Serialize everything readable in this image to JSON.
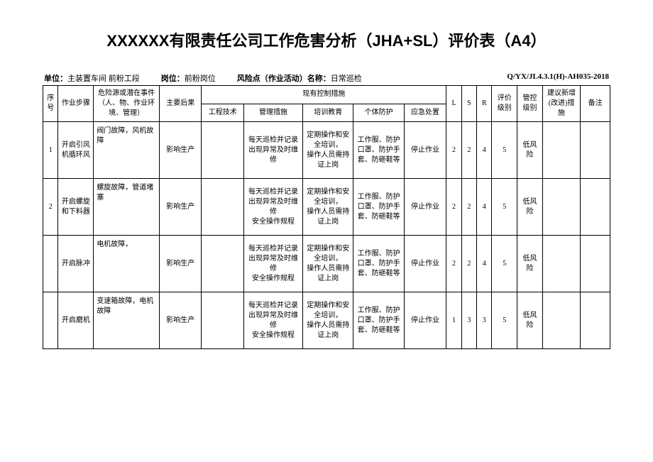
{
  "title": "XXXXXX有限责任公司工作危害分析（JHA+SL）评价表（A4）",
  "meta": {
    "unit_label": "单位：",
    "unit_val": "主装置车间 前粉工段",
    "post_label": "岗位：",
    "post_val": "前粉岗位",
    "risk_label": "风险点（作业活动）名称：",
    "risk_val": "日常巡检",
    "code": "Q/YX/JL4.3.1(H)-AH035-2018"
  },
  "headers": {
    "seq": "序号",
    "step": "作业步骤",
    "hazard": "危险源或潜在事件（人、物、作业环境、管理）",
    "conseq": "主要后果",
    "control": "现有控制措施",
    "eng": "工程技术",
    "mgmt": "管理措施",
    "train": "培训教育",
    "ppe": "个体防护",
    "emerg": "应急处置",
    "L": "L",
    "S": "S",
    "R": "R",
    "grade": "评价级别",
    "ctrl": "管控级别",
    "sugg": "建议新增(改进)措施",
    "remark": "备注"
  },
  "rows": [
    {
      "seq": "1",
      "step": "开启引风机循环风",
      "hazard": "阀门故障，风机故障",
      "conseq": "影响生产",
      "eng": "",
      "mgmt": "每天巡检并记录\n出现异常及时维修",
      "train": "定期操作和安全培训，\n操作人员需持证上岗",
      "ppe": "工作服、防护口罩、防护手套、防砸鞋等",
      "emerg": "停止作业",
      "L": "2",
      "S": "2",
      "R": "4",
      "grade": "5",
      "ctrl": "低风险",
      "sugg": "",
      "remark": ""
    },
    {
      "seq": "2",
      "step": "开启螺旋和下料器",
      "hazard": "螺旋故障，管道堵塞",
      "conseq": "影响生产",
      "eng": "",
      "mgmt": "每天巡检并记录\n出现异常及时维修\n安全操作规程",
      "train": "定期操作和安全培训，\n操作人员需持证上岗",
      "ppe": "工作服、防护口罩、防护手套、防砸鞋等",
      "emerg": "停止作业",
      "L": "2",
      "S": "2",
      "R": "4",
      "grade": "5",
      "ctrl": "低风险",
      "sugg": "",
      "remark": ""
    },
    {
      "seq": "",
      "step": "开启脉冲",
      "hazard": "电机故障，",
      "conseq": "影响生产",
      "eng": "",
      "mgmt": "每天巡检并记录\n出现异常及时维修\n安全操作规程",
      "train": "定期操作和安全培训，\n操作人员需持证上岗",
      "ppe": "工作服、防护口罩、防护手套、防砸鞋等",
      "emerg": "停止作业",
      "L": "2",
      "S": "2",
      "R": "4",
      "grade": "5",
      "ctrl": "低风险",
      "sugg": "",
      "remark": ""
    },
    {
      "seq": "",
      "step": "开启磨机",
      "hazard": "变速箱故障，电机故障",
      "conseq": "影响生产",
      "eng": "",
      "mgmt": "每天巡检并记录\n出现异常及时维修\n安全操作规程",
      "train": "定期操作和安全培训，\n操作人员需持证上岗",
      "ppe": "工作服、防护口罩、防护手套、防砸鞋等",
      "emerg": "停止作业",
      "L": "1",
      "S": "3",
      "R": "3",
      "grade": "5",
      "ctrl": "低风险",
      "sugg": "",
      "remark": ""
    }
  ]
}
